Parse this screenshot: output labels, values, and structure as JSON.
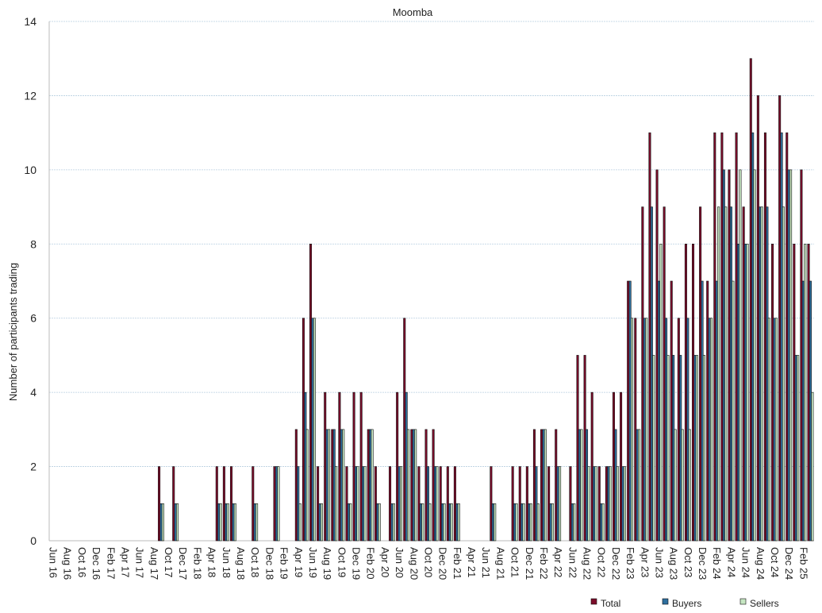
{
  "chart_data": {
    "type": "bar",
    "title": "Moomba",
    "y_label": "Number of participants trading",
    "categories": [
      "Jun 16",
      null,
      "Aug 16",
      null,
      "Oct 16",
      null,
      "Dec 16",
      null,
      "Feb 17",
      null,
      "Apr 17",
      null,
      "Jun 17",
      null,
      "Aug 17",
      null,
      "Oct 17",
      null,
      "Dec 17",
      null,
      "Feb 18",
      null,
      "Apr 18",
      null,
      "Jun 18",
      null,
      "Aug 18",
      null,
      "Oct 18",
      null,
      "Dec 18",
      null,
      "Feb 19",
      null,
      "Apr 19",
      null,
      "Jun 19",
      null,
      "Aug 19",
      null,
      "Oct 19",
      null,
      "Dec 19",
      null,
      "Feb 20",
      null,
      "Apr 20",
      null,
      "Jun 20",
      null,
      "Aug 20",
      null,
      "Oct 20",
      null,
      "Dec 20",
      null,
      "Feb 21",
      null,
      "Apr 21",
      null,
      "Jun 21",
      null,
      "Aug 21",
      null,
      "Oct 21",
      null,
      "Dec 21",
      null,
      "Feb 22",
      null,
      "Apr 22",
      null,
      "Jun 22",
      null,
      "Aug 22",
      null,
      "Oct 22",
      null,
      "Dec 22",
      null,
      "Feb 23",
      null,
      "Apr 23",
      null,
      "Jun 23",
      null,
      "Aug 23",
      null,
      "Oct 23",
      null,
      "Dec 23",
      null,
      "Feb 24",
      null,
      "Apr 24",
      null,
      "Jun 24",
      null,
      "Aug 24",
      null,
      "Oct 24",
      null,
      "Dec 24",
      null,
      "Feb 25",
      null
    ],
    "series": [
      {
        "name": "Total",
        "color": "#7b0c2a",
        "values": [
          0,
          0,
          0,
          0,
          0,
          0,
          0,
          0,
          0,
          0,
          0,
          0,
          0,
          0,
          0,
          2,
          0,
          2,
          0,
          0,
          0,
          0,
          0,
          2,
          2,
          2,
          0,
          0,
          2,
          0,
          0,
          2,
          0,
          0,
          3,
          6,
          8,
          2,
          4,
          3,
          4,
          2,
          4,
          4,
          3,
          2,
          0,
          2,
          4,
          6,
          3,
          2,
          3,
          3,
          2,
          2,
          2,
          0,
          0,
          0,
          0,
          2,
          0,
          0,
          2,
          2,
          2,
          3,
          3,
          2,
          3,
          0,
          2,
          5,
          5,
          4,
          2,
          2,
          4,
          4,
          7,
          6,
          9,
          11,
          10,
          9,
          7,
          6,
          8,
          8,
          9,
          7,
          11,
          11,
          10,
          11,
          9,
          13,
          12,
          11,
          8,
          12,
          11,
          8,
          10,
          8
        ]
      },
      {
        "name": "Buyers",
        "color": "#2e6f9e",
        "values": [
          0,
          0,
          0,
          0,
          0,
          0,
          0,
          0,
          0,
          0,
          0,
          0,
          0,
          0,
          0,
          1,
          0,
          1,
          0,
          0,
          0,
          0,
          0,
          1,
          1,
          1,
          0,
          0,
          1,
          0,
          0,
          2,
          0,
          0,
          2,
          4,
          6,
          1,
          3,
          3,
          3,
          1,
          2,
          2,
          3,
          1,
          0,
          1,
          2,
          4,
          3,
          1,
          2,
          2,
          1,
          1,
          1,
          0,
          0,
          0,
          0,
          1,
          0,
          0,
          1,
          1,
          1,
          2,
          3,
          1,
          2,
          0,
          1,
          3,
          3,
          2,
          1,
          2,
          3,
          2,
          7,
          3,
          6,
          9,
          7,
          6,
          5,
          5,
          6,
          5,
          7,
          6,
          7,
          10,
          9,
          8,
          8,
          11,
          9,
          9,
          6,
          11,
          10,
          5,
          7,
          7
        ]
      },
      {
        "name": "Sellers",
        "color": "#c6e6c2",
        "values": [
          0,
          0,
          0,
          0,
          0,
          0,
          0,
          0,
          0,
          0,
          0,
          0,
          0,
          0,
          0,
          1,
          0,
          1,
          0,
          0,
          0,
          0,
          0,
          1,
          1,
          1,
          0,
          0,
          1,
          0,
          0,
          2,
          0,
          0,
          1,
          3,
          6,
          1,
          3,
          2,
          3,
          1,
          2,
          2,
          3,
          1,
          0,
          1,
          2,
          3,
          3,
          1,
          1,
          2,
          1,
          1,
          1,
          0,
          0,
          0,
          0,
          1,
          0,
          0,
          1,
          1,
          1,
          1,
          3,
          1,
          2,
          0,
          1,
          3,
          2,
          2,
          1,
          2,
          2,
          2,
          6,
          3,
          6,
          5,
          8,
          5,
          3,
          3,
          3,
          5,
          5,
          6,
          9,
          9,
          7,
          10,
          8,
          10,
          9,
          6,
          6,
          9,
          10,
          5,
          8,
          4
        ]
      }
    ],
    "ylim": [
      0,
      14
    ],
    "yticks": [
      0,
      2,
      4,
      6,
      8,
      10,
      12,
      14
    ],
    "grid": true,
    "legend": "bottom-right"
  }
}
